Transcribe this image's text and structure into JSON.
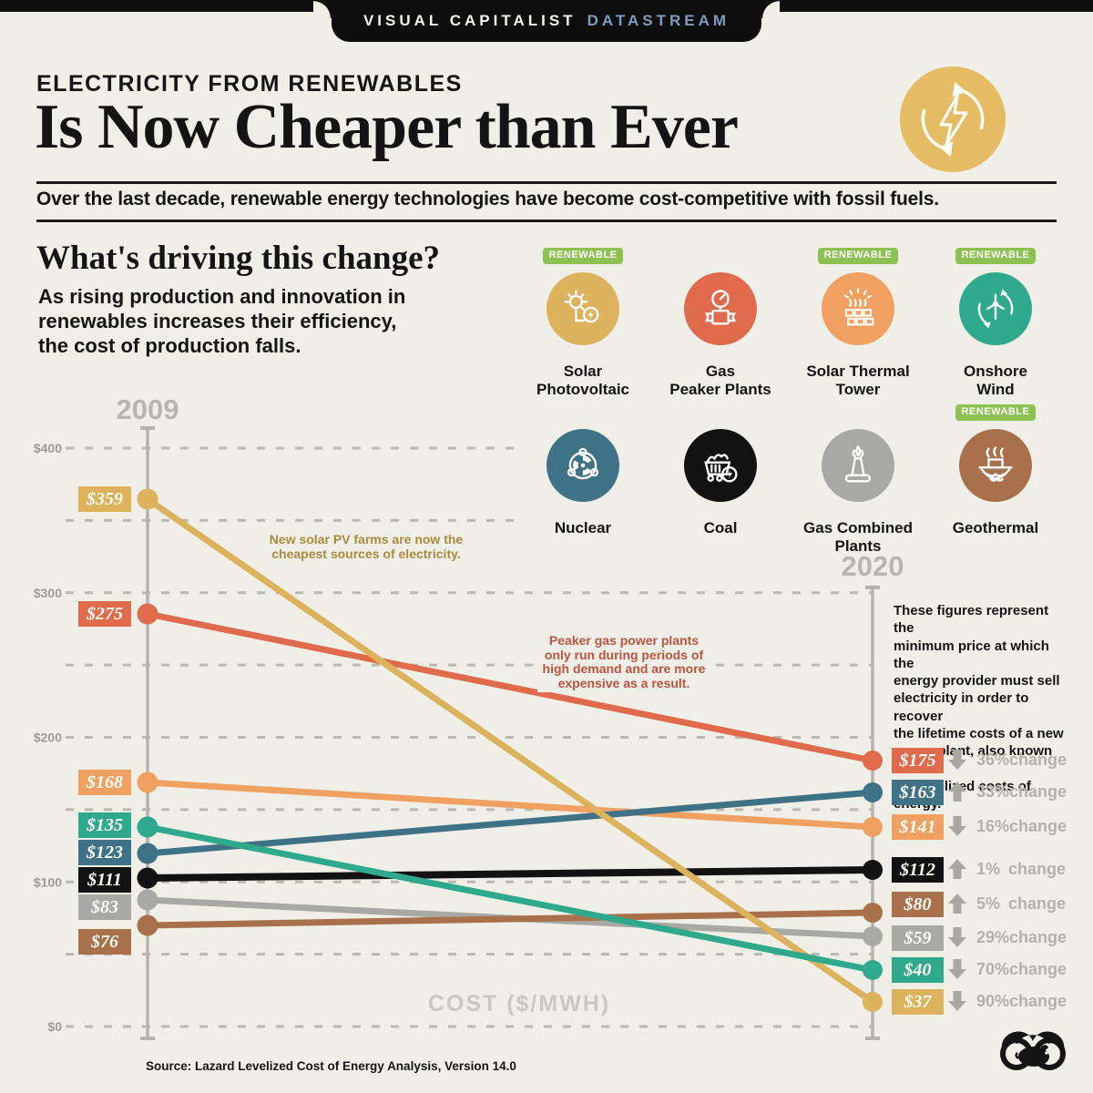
{
  "banner": {
    "brand": "VISUAL CAPITALIST",
    "product": "DATASTREAM"
  },
  "header": {
    "kicker": "ELECTRICITY FROM RENEWABLES",
    "title": "Is Now Cheaper than Ever",
    "subtitle": "Over the last decade, renewable energy technologies have become cost-competitive with fossil fuels.",
    "badge_icon": "recycle-lightning-icon",
    "badge_color": "#e5bc63"
  },
  "intro": {
    "heading": "What's driving this change?",
    "body": "As rising production and innovation in\nrenewables increases their efficiency,\nthe cost of production falls."
  },
  "legend": {
    "badge_label": "RENEWABLE",
    "badge_color": "#8dc152",
    "items": [
      {
        "id": "solar_pv",
        "label": "Solar\nPhotovoltaic",
        "color": "#dcb25d",
        "renewable": true,
        "icon": "solar-pv-icon"
      },
      {
        "id": "gas_peaker",
        "label": "Gas\nPeaker Plants",
        "color": "#e06a4c",
        "renewable": false,
        "icon": "gas-peaker-icon"
      },
      {
        "id": "solar_thermal",
        "label": "Solar Thermal\nTower",
        "color": "#f0a161",
        "renewable": true,
        "icon": "solar-thermal-icon"
      },
      {
        "id": "onshore_wind",
        "label": "Onshore\nWind",
        "color": "#2fa98c",
        "renewable": true,
        "icon": "wind-turbine-icon"
      },
      {
        "id": "nuclear",
        "label": "Nuclear",
        "color": "#3f7187",
        "renewable": false,
        "icon": "nuclear-icon"
      },
      {
        "id": "coal",
        "label": "Coal",
        "color": "#121212",
        "renewable": false,
        "icon": "coal-cart-icon"
      },
      {
        "id": "gas_combined",
        "label": "Gas Combined\nPlants",
        "color": "#a8a8a5",
        "renewable": false,
        "icon": "gas-combined-icon"
      },
      {
        "id": "geothermal",
        "label": "Geothermal",
        "color": "#a8714b",
        "renewable": true,
        "icon": "geothermal-icon"
      }
    ]
  },
  "chart_data": {
    "type": "slope",
    "periods": [
      "2009",
      "2020"
    ],
    "xlabel": "",
    "ylabel": "COST ($/MWH)",
    "change_word": "change",
    "y_axis": {
      "min": 0,
      "max": 400,
      "gridline_step": 50,
      "labeled_ticks": [
        {
          "label": "$400",
          "value": 400
        },
        {
          "label": "$300",
          "value": 300
        },
        {
          "label": "$200",
          "value": 200
        },
        {
          "label": "$100",
          "value": 100
        },
        {
          "label": "$0",
          "value": 0
        }
      ]
    },
    "series": [
      {
        "id": "solar_pv",
        "name": "Solar Photovoltaic",
        "color": "#dcb25d",
        "value_2009": 359,
        "value_2020": 37,
        "change_pct": "90%",
        "change_dir": "down"
      },
      {
        "id": "gas_peaker",
        "name": "Gas Peaker Plants",
        "color": "#e06a4c",
        "value_2009": 275,
        "value_2020": 175,
        "change_pct": "36%",
        "change_dir": "down"
      },
      {
        "id": "solar_thermal",
        "name": "Solar Thermal Tower",
        "color": "#f0a161",
        "value_2009": 168,
        "value_2020": 141,
        "change_pct": "16%",
        "change_dir": "down"
      },
      {
        "id": "onshore_wind",
        "name": "Onshore Wind",
        "color": "#2fa98c",
        "value_2009": 135,
        "value_2020": 40,
        "change_pct": "70%",
        "change_dir": "down"
      },
      {
        "id": "nuclear",
        "name": "Nuclear",
        "color": "#3f7187",
        "value_2009": 123,
        "value_2020": 163,
        "change_pct": "33%",
        "change_dir": "up"
      },
      {
        "id": "coal",
        "name": "Coal",
        "color": "#121212",
        "value_2009": 111,
        "value_2020": 112,
        "change_pct": "1%",
        "change_dir": "up"
      },
      {
        "id": "gas_combined",
        "name": "Gas Combined Plants",
        "color": "#a8a8a5",
        "value_2009": 83,
        "value_2020": 59,
        "change_pct": "29%",
        "change_dir": "down"
      },
      {
        "id": "geothermal",
        "name": "Geothermal",
        "color": "#a8714b",
        "value_2009": 76,
        "value_2020": 80,
        "change_pct": "5%",
        "change_dir": "up"
      }
    ]
  },
  "annotations": {
    "solar_pv": "New solar PV farms are now the\ncheapest sources of electricity.",
    "gas_peaker": "Peaker gas power plants\nonly run during periods of\nhigh demand and are more\nexpensive as a result."
  },
  "explainer": "These figures represent the\nminimum price at which the\nenergy provider must sell\nelectricity in order to recover\nthe lifetime costs of a new\npower plant, also known as\nthe levelized costs of energy.",
  "source": "Source: Lazard Levelized Cost of Energy Analysis, Version 14.0"
}
